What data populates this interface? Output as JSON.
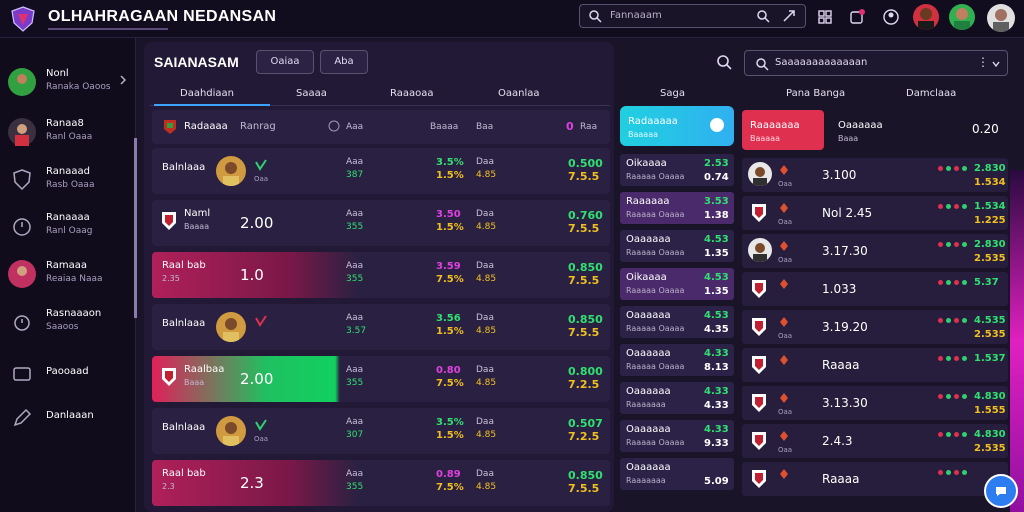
{
  "app": {
    "title": "OLHAHRAGAAN NEDANSAN"
  },
  "topbar": {
    "search_placeholder": "Fannaaam"
  },
  "sidebar": {
    "items": [
      {
        "title": "Nonl",
        "sub": "Ranaka Oaoos"
      },
      {
        "title": "Ranaa8",
        "sub": "Ranl Oaaa"
      },
      {
        "title": "Ranaaad",
        "sub": "Rasb Oaaa"
      },
      {
        "title": "Ranaaaa",
        "sub": "Ranl Oaag"
      },
      {
        "title": "Ramaaa",
        "sub": "Reaiaa Naaa"
      },
      {
        "title": "Rasnaaaon",
        "sub": "Saaoos"
      },
      {
        "title": "Paooaad",
        "sub": ""
      },
      {
        "title": "Danlaaan",
        "sub": ""
      }
    ]
  },
  "main": {
    "title": "SAIANASAM",
    "btn1": "Oaiaa",
    "btn2": "Aba",
    "tabs": [
      "Daahdiaan",
      "Saaaa",
      "Raaaoaa",
      "Oaanlaa"
    ],
    "header": {
      "name": "Radaaaa",
      "name2": "Ranrag",
      "c1": "Aaa",
      "c2": "Baaaa",
      "c3": "Baa",
      "c4": "0",
      "c4b": "Raa"
    },
    "rows": [
      {
        "style": "plain",
        "name": "Balnlaaa",
        "big": "",
        "avatar": true,
        "icon": "check-icon",
        "iconsub": "Oaa",
        "c1": "Aaa",
        "c1b": "387",
        "c2": "3.5%",
        "c2b": "1.5%",
        "c3": "Daa",
        "c3b": "4.85",
        "c4": "0.500",
        "c4b": "7.5.5"
      },
      {
        "style": "plain",
        "name": "Naml",
        "sub": "Baaaa",
        "big": "2.00",
        "badge": true,
        "c1": "Aaa",
        "c1b": "355",
        "c2": "3.50",
        "c2b": "1.5%",
        "c3": "Daa",
        "c3b": "4.85",
        "c4": "0.760",
        "c4b": "7.5.5"
      },
      {
        "style": "pink",
        "name": "Raal bab",
        "sub": "2.35",
        "big": "1.0",
        "c1": "Aaa",
        "c1b": "355",
        "c2": "3.59",
        "c2b": "7.5%",
        "c3": "Daa",
        "c3b": "4.85",
        "c4": "0.850",
        "c4b": "7.5.5"
      },
      {
        "style": "plain",
        "name": "Balnlaaa",
        "big": "",
        "avatar": true,
        "icon": "heart-icon",
        "iconsub": "",
        "c1": "Aaa",
        "c1b": "3.57",
        "c2": "3.56",
        "c2b": "1.5%",
        "c3": "Daa",
        "c3b": "4.85",
        "c4": "0.850",
        "c4b": "7.5.5"
      },
      {
        "style": "green",
        "name": "Raalbaa",
        "sub": "Baaa",
        "big": "2.00",
        "badge": true,
        "c1": "Aaa",
        "c1b": "355",
        "c2": "0.80",
        "c2b": "7.5%",
        "c3": "Daa",
        "c3b": "4.85",
        "c4": "0.800",
        "c4b": "7.2.5"
      },
      {
        "style": "plain",
        "name": "Balnlaaa",
        "big": "",
        "avatar": true,
        "icon": "check-icon",
        "iconsub": "Oaa",
        "c1": "Aaa",
        "c1b": "307",
        "c2": "3.5%",
        "c2b": "1.5%",
        "c3": "Daa",
        "c3b": "4.85",
        "c4": "0.507",
        "c4b": "7.2.5"
      },
      {
        "style": "pink",
        "name": "Raal bab",
        "sub": "2.3",
        "big": "2.3",
        "c1": "Aaa",
        "c1b": "355",
        "c2": "0.89",
        "c2b": "7.5%",
        "c3": "Daa",
        "c3b": "4.85",
        "c4": "0.850",
        "c4b": "7.5.5"
      }
    ]
  },
  "mid": {
    "tab": "Saga",
    "head": {
      "t1": "Radaaaaa",
      "t2": "Baaaaa"
    },
    "cells": [
      {
        "m1": "Oikaaaa",
        "m2": "Raaaaa Oaaaa",
        "m3": "2.53",
        "m4": "0.74",
        "pp": false
      },
      {
        "m1": "Raaaaaa",
        "m2": "Raaaaa Oaaaa",
        "m3": "3.53",
        "m4": "1.38",
        "pp": true
      },
      {
        "m1": "Oaaaaaa",
        "m2": "Raaaaa Oaaaa",
        "m3": "4.53",
        "m4": "1.35",
        "pp": false
      },
      {
        "m1": "Oikaaaa",
        "m2": "Raaaaa Oaaaa",
        "m3": "4.53",
        "m4": "1.35",
        "pp": true
      },
      {
        "m1": "Oaaaaaa",
        "m2": "Raaaaa Oaaaa",
        "m3": "4.53",
        "m4": "4.35",
        "pp": false
      },
      {
        "m1": "Oaaaaaa",
        "m2": "Raaaaa Oaaaa",
        "m3": "4.33",
        "m4": "8.13",
        "pp": false
      },
      {
        "m1": "Oaaaaaa",
        "m2": "Raaaaaaa",
        "m3": "4.33",
        "m4": "4.33",
        "pp": false
      },
      {
        "m1": "Oaaaaaa",
        "m2": "Raaaaa Oaaaa",
        "m3": "4.33",
        "m4": "9.33",
        "pp": false
      },
      {
        "m1": "Oaaaaaa",
        "m2": "Raaaaaaa",
        "m3": "",
        "m4": "5.09",
        "pp": false
      }
    ]
  },
  "right": {
    "search": "Saaaaaaaaaaaaan",
    "tabs": [
      "Pana Banga",
      "Damclaaa"
    ],
    "head": {
      "pk1": "Raaaaaaa",
      "pk2": "Baaaaa",
      "n1": "Oaaaaaa",
      "n2": "Baaa",
      "val": "0.20"
    },
    "rows": [
      {
        "avatar": true,
        "v": "3.100",
        "sub": "Oaa",
        "g": "2.830",
        "gb": "1.534"
      },
      {
        "avatar": false,
        "v": "Nol  2.45",
        "sub": "Oaa",
        "g": "1.534",
        "gb": "1.225"
      },
      {
        "avatar": true,
        "v": "3.17.30",
        "sub": "Oaa",
        "g": "2.830",
        "gb": "2.535"
      },
      {
        "avatar": false,
        "v": "1.033",
        "sub": "",
        "g": "5.37",
        "gb": ""
      },
      {
        "avatar": false,
        "v": "3.19.20",
        "sub": "Oaa",
        "g": "4.535",
        "gb": "2.535"
      },
      {
        "avatar": false,
        "v": "Raaaa",
        "sub": "",
        "g": "1.537",
        "gb": ""
      },
      {
        "avatar": false,
        "v": "3.13.30",
        "sub": "Oaa",
        "g": "4.830",
        "gb": "1.555"
      },
      {
        "avatar": false,
        "v": "2.4.3",
        "sub": "Oaa",
        "g": "4.830",
        "gb": "2.535"
      },
      {
        "avatar": false,
        "v": "Raaaa",
        "sub": "",
        "g": "",
        "gb": ""
      }
    ]
  },
  "colors": {
    "accent_green": "#30e070",
    "accent_yellow": "#f0c020",
    "accent_pink": "#e040e0",
    "cyan": "#20d0e0",
    "red": "#e03050"
  }
}
